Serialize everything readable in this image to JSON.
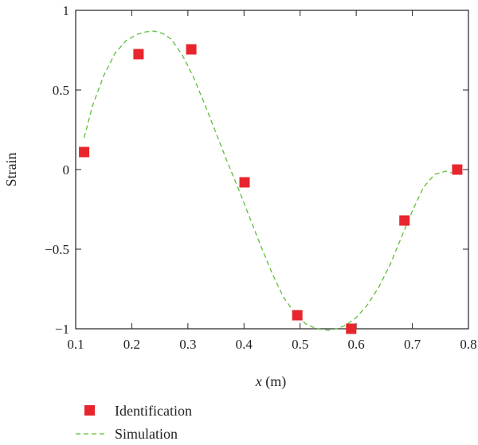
{
  "chart_data": {
    "type": "scatter",
    "title": "",
    "xlabel_var": "x",
    "xlabel_unit": " (m)",
    "ylabel": "Strain",
    "xlim": [
      0.1,
      0.8
    ],
    "ylim": [
      -1,
      1
    ],
    "xticks": [
      0.1,
      0.2,
      0.3,
      0.4,
      0.5,
      0.6,
      0.7,
      0.8
    ],
    "xtick_labels": [
      "0.1",
      "0.2",
      "0.3",
      "0.4",
      "0.5",
      "0.6",
      "0.7",
      "0.8"
    ],
    "yticks": [
      -1,
      -0.5,
      0,
      0.5,
      1
    ],
    "ytick_labels": [
      "−1",
      "−0.5",
      "0",
      "0.5",
      "1"
    ],
    "grid": false,
    "legend_position": "bottom-left outside",
    "series": [
      {
        "name": "Identification",
        "kind": "marker",
        "color": "#e8242d",
        "x": [
          0.115,
          0.212,
          0.306,
          0.401,
          0.495,
          0.591,
          0.686,
          0.78
        ],
        "y": [
          0.11,
          0.725,
          0.755,
          -0.08,
          -0.915,
          -1.0,
          -0.32,
          0.0
        ]
      },
      {
        "name": "Simulation",
        "kind": "dashed-line",
        "color": "#5cbf3a",
        "x": [
          0.115,
          0.13,
          0.15,
          0.17,
          0.19,
          0.21,
          0.225,
          0.24,
          0.255,
          0.27,
          0.29,
          0.31,
          0.33,
          0.35,
          0.37,
          0.39,
          0.41,
          0.43,
          0.45,
          0.47,
          0.49,
          0.51,
          0.53,
          0.55,
          0.565,
          0.58,
          0.6,
          0.62,
          0.64,
          0.66,
          0.68,
          0.7,
          0.72,
          0.74,
          0.76,
          0.77
        ],
        "y": [
          0.2,
          0.4,
          0.59,
          0.73,
          0.81,
          0.85,
          0.865,
          0.87,
          0.855,
          0.82,
          0.72,
          0.58,
          0.41,
          0.23,
          0.05,
          -0.12,
          -0.3,
          -0.48,
          -0.65,
          -0.8,
          -0.9,
          -0.97,
          -1.0,
          -1.01,
          -1.0,
          -0.98,
          -0.93,
          -0.85,
          -0.74,
          -0.6,
          -0.43,
          -0.26,
          -0.11,
          -0.03,
          -0.01,
          -0.02
        ]
      }
    ]
  }
}
